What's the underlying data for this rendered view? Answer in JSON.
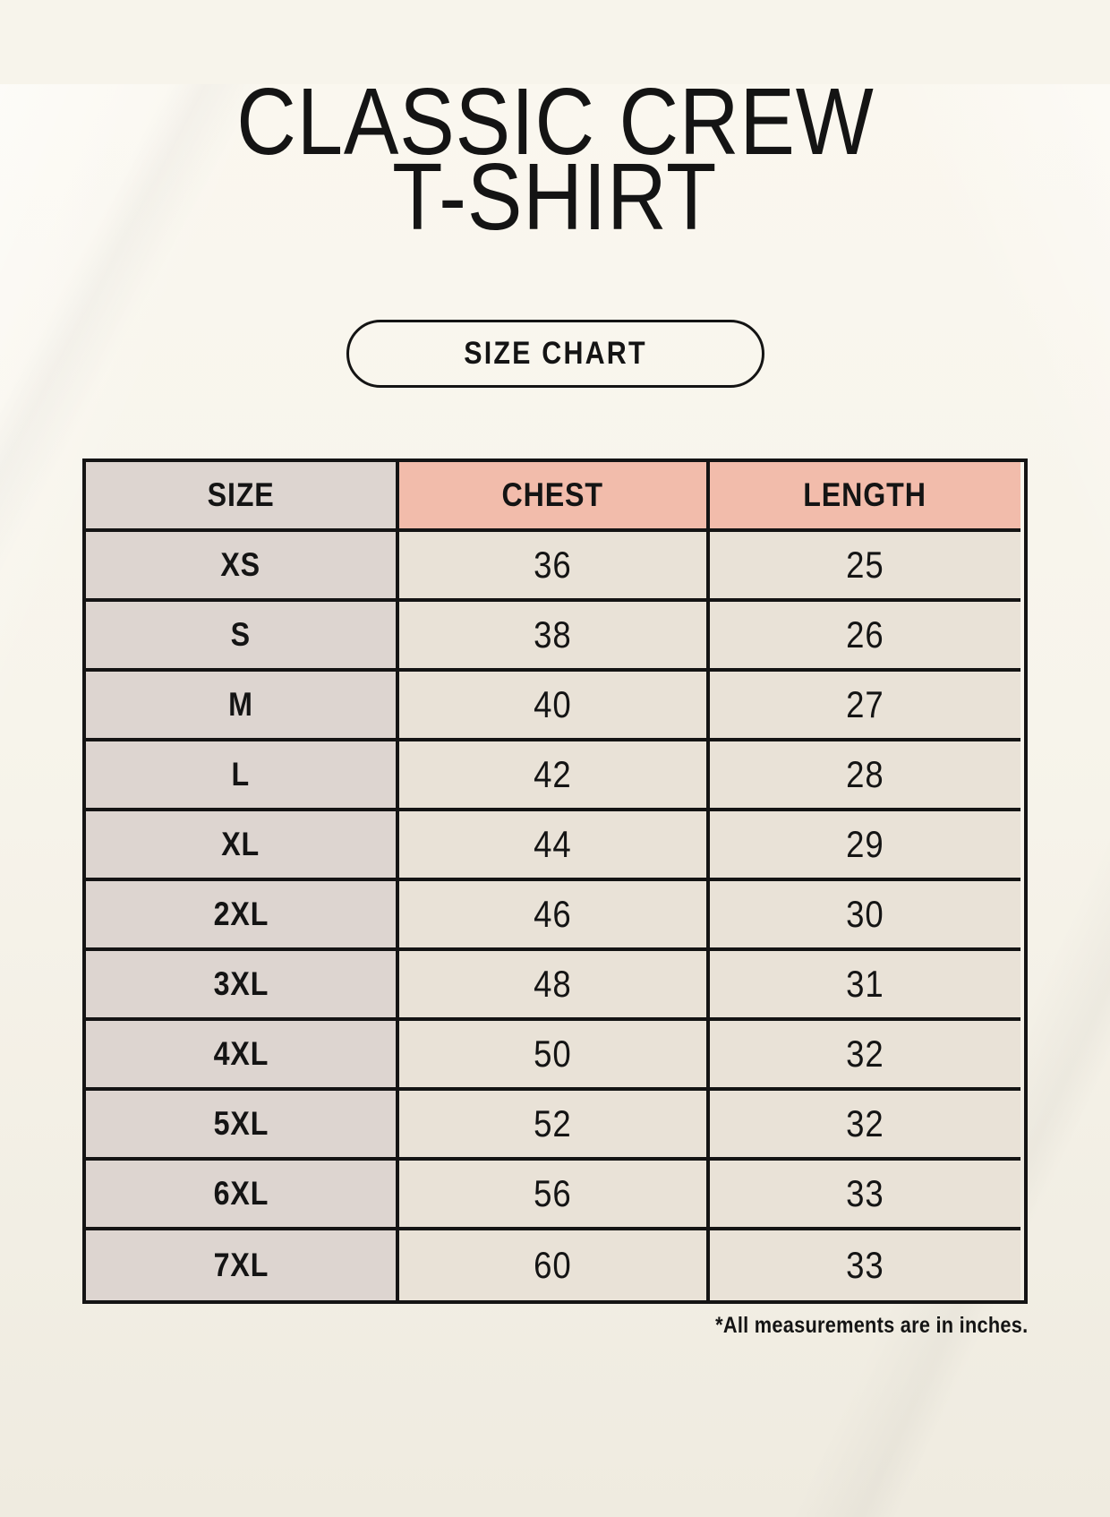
{
  "page": {
    "title_line1": "CLASSIC CREW",
    "title_line2": "T-SHIRT",
    "badge_label": "SIZE CHART",
    "footnote": "*All measurements are in inches."
  },
  "colors": {
    "page_bg": "#f7f4eb",
    "ink": "#141414",
    "line": "#141414",
    "salmon": "#f2bcab",
    "taupe": "#ddd5d0",
    "beige": "#e9e2d7"
  },
  "chart_data": {
    "type": "table",
    "title": "CLASSIC CREW T-SHIRT",
    "subtitle": "SIZE CHART",
    "units": "inches",
    "columns": [
      "SIZE",
      "CHEST",
      "LENGTH"
    ],
    "rows": [
      [
        "XS",
        36,
        25
      ],
      [
        "S",
        38,
        26
      ],
      [
        "M",
        40,
        27
      ],
      [
        "L",
        42,
        28
      ],
      [
        "XL",
        44,
        29
      ],
      [
        "2XL",
        46,
        30
      ],
      [
        "3XL",
        48,
        31
      ],
      [
        "4XL",
        50,
        32
      ],
      [
        "5XL",
        52,
        32
      ],
      [
        "6XL",
        56,
        33
      ],
      [
        "7XL",
        60,
        33
      ]
    ],
    "note": "*All measurements are in inches."
  }
}
